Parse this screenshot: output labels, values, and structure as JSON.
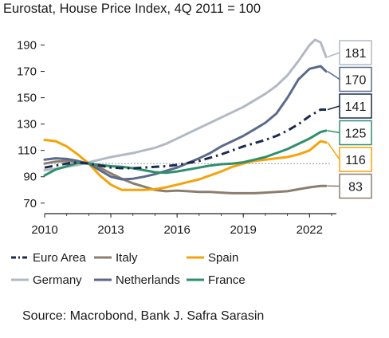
{
  "chart_data": {
    "type": "line",
    "title": "Eurostat, House Price Index, 4Q 2011 = 100",
    "source": "Source: Macrobond, Bank J. Safra Sarasin",
    "xlim": [
      2010,
      2023
    ],
    "ylim": [
      62,
      200
    ],
    "x_ticks": [
      "2010",
      "2013",
      "2016",
      "2019",
      "2022"
    ],
    "y_ticks": [
      "70",
      "90",
      "110",
      "130",
      "150",
      "170",
      "190"
    ],
    "reference_line": 100,
    "grid": false,
    "legend_position": "bottom",
    "series": [
      {
        "name": "Euro Area",
        "color": "#1b2a4e",
        "style": "dashdot",
        "end_label": "141",
        "x": [
          2010,
          2010.5,
          2011,
          2011.5,
          2012,
          2012.5,
          2013,
          2013.5,
          2014,
          2014.5,
          2015,
          2015.5,
          2016,
          2016.5,
          2017,
          2017.5,
          2018,
          2018.5,
          2019,
          2019.5,
          2020,
          2020.5,
          2021,
          2021.5,
          2022,
          2022.5,
          2022.75
        ],
        "y": [
          97,
          98.5,
          100,
          101,
          100,
          98.5,
          97,
          96.5,
          96.5,
          97,
          97.5,
          98,
          99,
          100.5,
          102,
          104.5,
          107,
          110,
          113,
          115.5,
          118,
          121,
          125,
          130,
          136,
          141,
          141
        ]
      },
      {
        "name": "Italy",
        "color": "#8c7e6e",
        "style": "solid",
        "end_label": "83",
        "x": [
          2010,
          2010.5,
          2011,
          2011.5,
          2012,
          2012.5,
          2013,
          2013.5,
          2014,
          2014.5,
          2015,
          2015.5,
          2016,
          2016.5,
          2017,
          2017.5,
          2018,
          2018.5,
          2019,
          2019.5,
          2020,
          2020.5,
          2021,
          2021.5,
          2022,
          2022.5,
          2022.75
        ],
        "y": [
          100,
          101.5,
          102,
          101,
          100,
          97,
          92.5,
          88.5,
          85,
          82.5,
          80,
          79,
          79.5,
          79,
          78.5,
          78.5,
          78,
          77.5,
          77.5,
          77.5,
          78,
          78.5,
          79,
          80.5,
          82,
          83,
          83
        ]
      },
      {
        "name": "Spain",
        "color": "#f5a30a",
        "style": "solid",
        "end_label": "116",
        "x": [
          2010,
          2010.5,
          2011,
          2011.5,
          2012,
          2012.5,
          2013,
          2013.5,
          2014,
          2014.5,
          2015,
          2015.5,
          2016,
          2016.5,
          2017,
          2017.5,
          2018,
          2018.5,
          2019,
          2019.5,
          2020,
          2020.5,
          2021,
          2021.5,
          2022,
          2022.5,
          2022.75
        ],
        "y": [
          118,
          117,
          113,
          107,
          100,
          91,
          84,
          80,
          80,
          80,
          80.5,
          82,
          84,
          86,
          88,
          91,
          94,
          97.5,
          100,
          102,
          103,
          104,
          105,
          107,
          110,
          117,
          116
        ]
      },
      {
        "name": "Germany",
        "color": "#b3b9c4",
        "style": "solid",
        "end_label": "181",
        "x": [
          2010,
          2010.5,
          2011,
          2011.5,
          2012,
          2012.5,
          2013,
          2013.5,
          2014,
          2014.5,
          2015,
          2015.5,
          2016,
          2016.5,
          2017,
          2017.5,
          2018,
          2018.5,
          2019,
          2019.5,
          2020,
          2020.5,
          2021,
          2021.5,
          2022,
          2022.25,
          2022.5,
          2022.75
        ],
        "y": [
          95,
          96,
          97.5,
          99,
          101,
          103,
          105,
          106.5,
          108,
          110,
          112,
          115,
          119,
          123,
          127,
          131,
          135,
          139,
          143,
          148,
          153,
          159,
          167,
          178,
          190,
          194,
          192,
          181
        ]
      },
      {
        "name": "Netherlands",
        "color": "#5b6a8a",
        "style": "solid",
        "end_label": "170",
        "x": [
          2010,
          2010.5,
          2011,
          2011.5,
          2012,
          2012.5,
          2013,
          2013.5,
          2014,
          2014.5,
          2015,
          2015.5,
          2016,
          2016.5,
          2017,
          2017.5,
          2018,
          2018.5,
          2019,
          2019.5,
          2020,
          2020.5,
          2021,
          2021.5,
          2022,
          2022.5,
          2022.75
        ],
        "y": [
          103,
          104,
          103.5,
          102,
          100,
          95,
          90,
          88,
          88.5,
          90,
          92,
          94.5,
          97,
          100.5,
          104,
          108,
          113,
          117,
          121,
          126,
          131,
          138,
          150,
          164,
          172,
          174,
          170
        ]
      },
      {
        "name": "France",
        "color": "#2f8f6c",
        "style": "solid",
        "end_label": "125",
        "x": [
          2010,
          2010.5,
          2011,
          2011.5,
          2012,
          2012.5,
          2013,
          2013.5,
          2014,
          2014.5,
          2015,
          2015.5,
          2016,
          2016.5,
          2017,
          2017.5,
          2018,
          2018.5,
          2019,
          2019.5,
          2020,
          2020.5,
          2021,
          2021.5,
          2022,
          2022.5,
          2022.75
        ],
        "y": [
          91,
          95.5,
          98,
          100.5,
          100,
          99,
          98,
          97.5,
          96.5,
          95,
          93.5,
          93,
          94,
          95.5,
          97,
          98.5,
          99.5,
          100,
          101,
          103,
          105,
          108,
          111,
          115,
          119,
          124,
          125
        ]
      }
    ]
  }
}
